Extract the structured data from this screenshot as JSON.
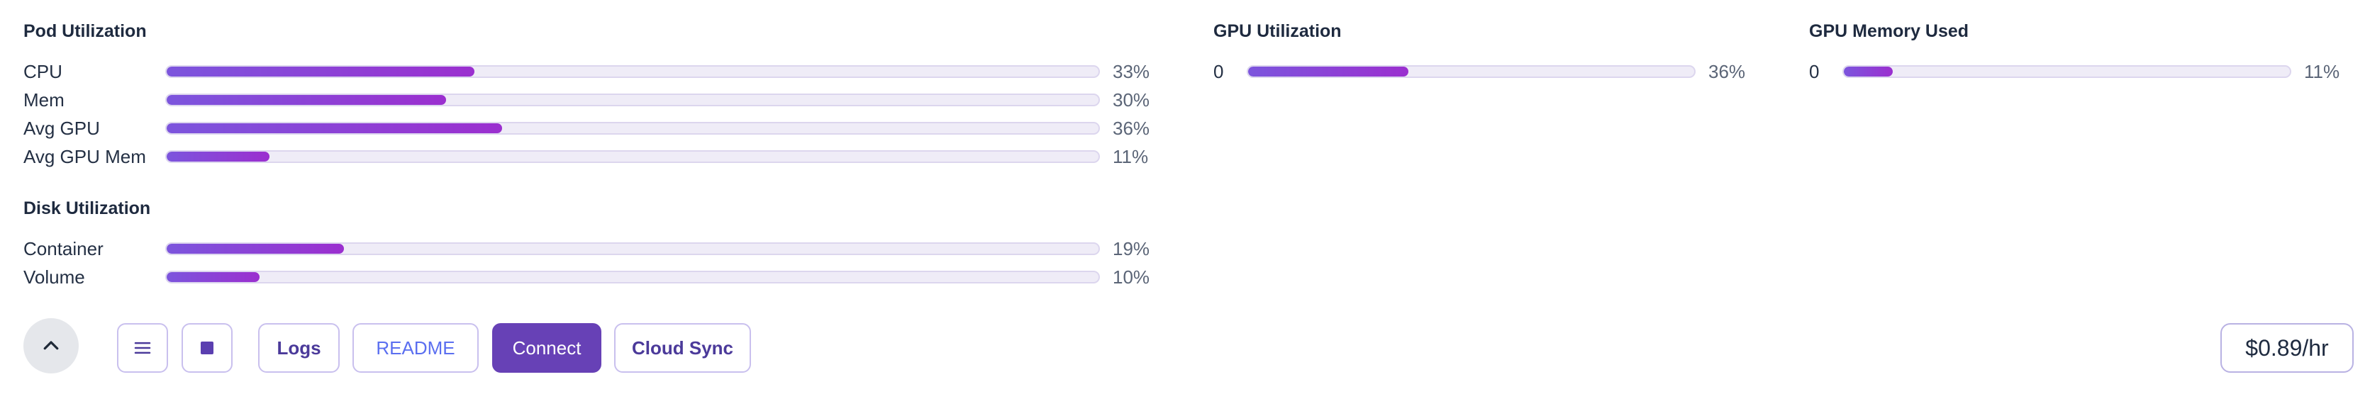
{
  "pod_utilization": {
    "title": "Pod Utilization",
    "metrics": [
      {
        "label": "CPU",
        "value_text": "33%",
        "percent": 33
      },
      {
        "label": "Mem",
        "value_text": "30%",
        "percent": 30
      },
      {
        "label": "Avg GPU",
        "value_text": "36%",
        "percent": 36
      },
      {
        "label": "Avg GPU Mem",
        "value_text": "11%",
        "percent": 11
      }
    ]
  },
  "disk_utilization": {
    "title": "Disk Utilization",
    "metrics": [
      {
        "label": "Container",
        "value_text": "19%",
        "percent": 19
      },
      {
        "label": "Volume",
        "value_text": "10%",
        "percent": 10
      }
    ]
  },
  "gpu_utilization": {
    "title": "GPU Utilization",
    "gpus": [
      {
        "index": "0",
        "value_text": "36%",
        "percent": 36
      }
    ]
  },
  "gpu_memory_used": {
    "title": "GPU Memory Used",
    "gpus": [
      {
        "index": "0",
        "value_text": "11%",
        "percent": 11
      }
    ]
  },
  "toolbar": {
    "collapse_icon": "chevron-up-icon",
    "menu_icon": "hamburger-menu-icon",
    "stop_icon": "stop-square-icon",
    "logs_label": "Logs",
    "readme_label": "README",
    "connect_label": "Connect",
    "cloud_sync_label": "Cloud Sync"
  },
  "price": {
    "label": "$0.89/hr"
  },
  "colors": {
    "accent": "#6741b6",
    "bar_gradient_start": "#7c55dd",
    "bar_gradient_end": "#9b2fcf",
    "bar_track": "#efecf7",
    "link": "#5b6ff0"
  }
}
